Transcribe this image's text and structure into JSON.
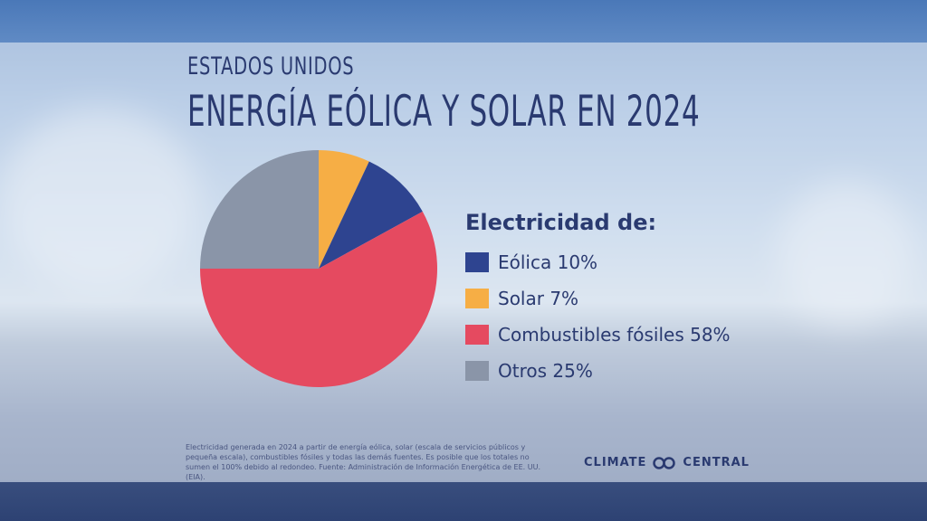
{
  "header": {
    "subtitle": "ESTADOS UNIDOS",
    "title": "ENERGÍA EÓLICA Y SOLAR EN 2024"
  },
  "chart_data": {
    "type": "pie",
    "title": "ENERGÍA EÓLICA Y SOLAR EN 2024",
    "legend_title": "Electricidad de:",
    "legend_placement": "right",
    "start": "top",
    "direction": "clockwise",
    "slices": [
      {
        "name": "Solar",
        "value": 7,
        "label": "Solar 7%",
        "color": "#f6ae45"
      },
      {
        "name": "Eólica",
        "value": 10,
        "label": "Eólica 10%",
        "color": "#2e4490"
      },
      {
        "name": "Combustibles fósiles",
        "value": 58,
        "label": "Combustibles fósiles 58%",
        "color": "#e54a60"
      },
      {
        "name": "Otros",
        "value": 25,
        "label": "Otros 25%",
        "color": "#8a95a8"
      }
    ],
    "legend_order": [
      1,
      0,
      2,
      3
    ]
  },
  "footnote": "Electricidad generada en 2024 a partir de energía eólica, solar (escala de servicios públicos y pequeña escala), combustibles fósiles y todas las demás fuentes. Es posible que los totales no sumen el 100% debido al redondeo. Fuente: Administración de Información Energética de EE. UU. (EIA).",
  "logo": {
    "left": "CLIMATE",
    "right": "CENTRAL"
  }
}
